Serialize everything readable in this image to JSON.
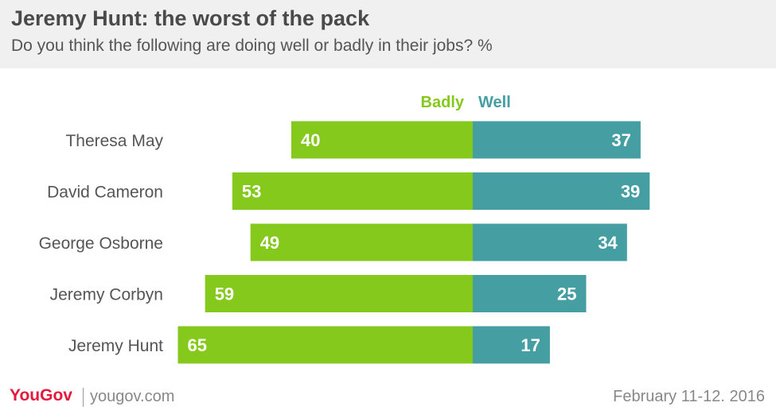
{
  "header": {
    "title": "Jeremy Hunt: the worst of the pack",
    "subtitle": "Do you think the following are doing well or badly in their jobs? %"
  },
  "footer": {
    "logo": "YouGov",
    "url": "yougov.com",
    "date": "February 11-12. 2016"
  },
  "colors": {
    "badly": "#84c91c",
    "well": "#459ea1",
    "label": "#555555"
  },
  "chart_data": {
    "type": "bar",
    "orientation": "horizontal-diverging",
    "title": "Jeremy Hunt: the worst of the pack",
    "subtitle": "Do you think the following are doing well or badly in their jobs? %",
    "categories": [
      "Theresa May",
      "David Cameron",
      "George Osborne",
      "Jeremy Corbyn",
      "Jeremy Hunt"
    ],
    "series": [
      {
        "name": "Badly",
        "values": [
          40,
          53,
          49,
          59,
          65
        ]
      },
      {
        "name": "Well",
        "values": [
          37,
          39,
          34,
          25,
          17
        ]
      }
    ],
    "grid": false,
    "legend": "top-center"
  }
}
